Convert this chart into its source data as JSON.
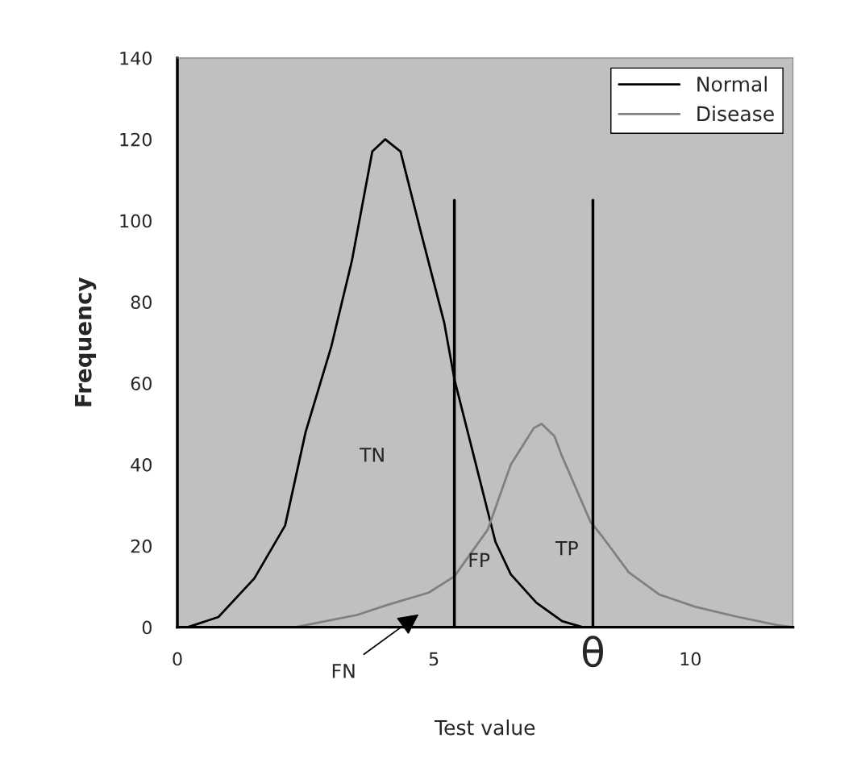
{
  "chart_data": {
    "type": "line",
    "xlabel": "Test value",
    "ylabel": "Frequency",
    "xlim": [
      0,
      12
    ],
    "ylim": [
      0,
      140
    ],
    "xticks": [
      0,
      5,
      10
    ],
    "yticks": [
      0,
      20,
      40,
      60,
      80,
      100,
      120,
      140
    ],
    "series": [
      {
        "name": "Normal",
        "color": "#000000",
        "x": [
          0.2,
          0.8,
          1.5,
          2.1,
          2.5,
          3.0,
          3.4,
          3.8,
          4.05,
          4.35,
          4.75,
          5.2,
          5.4,
          5.8,
          6.2,
          6.5,
          7.0,
          7.5,
          7.9
        ],
        "values": [
          0,
          2.5,
          12,
          25,
          48,
          69,
          90,
          117,
          120,
          117,
          97,
          75,
          61,
          41,
          21,
          13,
          6,
          1.5,
          0
        ]
      },
      {
        "name": "Disease",
        "color": "#808080",
        "x": [
          2.3,
          3.5,
          4.1,
          4.9,
          5.4,
          6.05,
          6.5,
          6.95,
          7.1,
          7.35,
          7.5,
          8.05,
          8.3,
          8.8,
          9.4,
          10.1,
          10.9,
          11.7,
          12
        ],
        "values": [
          0,
          3,
          5.5,
          8.5,
          12.5,
          24,
          40,
          49,
          50,
          47,
          42,
          26,
          22,
          13.5,
          8,
          5,
          2.6,
          0.5,
          0
        ]
      }
    ],
    "ref_lines": [
      {
        "axis": "x",
        "value": 5.4,
        "color": "#000000"
      },
      {
        "axis": "x",
        "value": 8.1,
        "label": "θ",
        "color": "#000000"
      }
    ],
    "annotations": [
      "TN",
      "FP",
      "TP",
      "FN"
    ],
    "legend": "top right",
    "grid": false,
    "marker": "none",
    "line_style": "solid"
  }
}
